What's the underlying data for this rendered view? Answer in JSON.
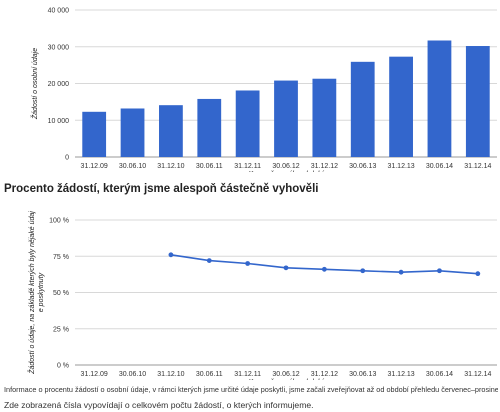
{
  "chart_data": [
    {
      "type": "bar",
      "categories": [
        "31.12.09",
        "30.06.10",
        "31.12.10",
        "30.06.11",
        "31.12.11",
        "30.06.12",
        "31.12.12",
        "30.06.13",
        "31.12.13",
        "30.06.14",
        "31.12.14"
      ],
      "values": [
        12300,
        13200,
        14100,
        15800,
        18100,
        20800,
        21300,
        25900,
        27300,
        31700,
        30200
      ],
      "xlabel": "Konec časového období",
      "ylabel": "Žádostí o osobní údaje",
      "ylim": [
        0,
        40000
      ],
      "yticks": [
        0,
        10000,
        20000,
        30000,
        40000
      ],
      "ytick_labels": [
        "0",
        "10 000",
        "20 000",
        "30 000",
        "40 000"
      ],
      "color": "#3366cc",
      "grid": true
    },
    {
      "type": "line",
      "title": "Procento žádostí, kterým jsme alespoň částečně vyhověli",
      "categories": [
        "31.12.09",
        "30.06.10",
        "31.12.10",
        "30.06.11",
        "31.12.11",
        "30.06.12",
        "31.12.12",
        "30.06.13",
        "31.12.13",
        "30.06.14",
        "31.12.14"
      ],
      "values": [
        null,
        null,
        76,
        72,
        70,
        67,
        66,
        65,
        64,
        65,
        63
      ],
      "xlabel": "Konec časového období",
      "ylabel": "Žádostí o údaje, na základě kterých byly nějaké údaje poskytnuty",
      "ylim": [
        0,
        100
      ],
      "yticks": [
        0,
        25,
        50,
        75,
        100
      ],
      "ytick_labels": [
        "0 %",
        "25 %",
        "50 %",
        "75 %",
        "100 %"
      ],
      "color": "#3366cc",
      "grid": true
    }
  ],
  "heading": "Procento žádostí, kterým jsme alespoň částečně vyhověli",
  "note": "Informace o procentu žádostí o osobní údaje, v rámci kterých jsme určité údaje poskytli, jsme začali zveřejňovat až od období přehledu červenec–prosinec 2010.",
  "footer": "Zde zobrazená čísla vypovídají o celkovém počtu žádostí, o kterých informujeme."
}
